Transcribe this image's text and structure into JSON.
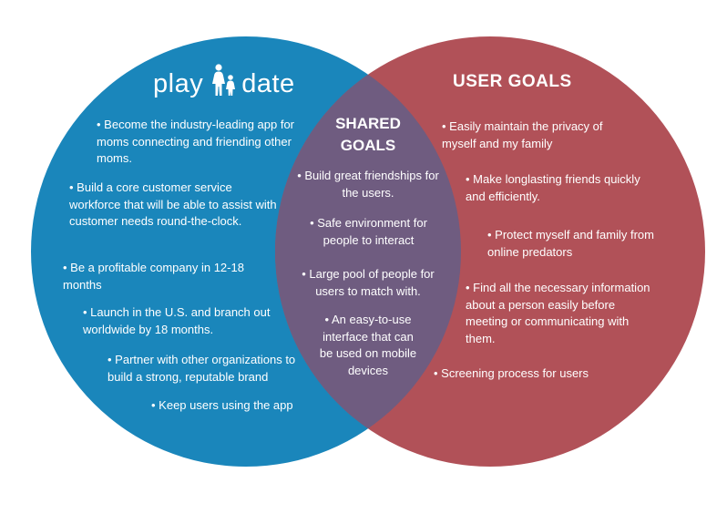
{
  "colors": {
    "left_circle": "#1a86bb",
    "right_circle": "#b15158",
    "overlap": "#6f5c80",
    "text": "#ffffff"
  },
  "left": {
    "logo_word_1": "play",
    "logo_icon": "mother-and-child-icon",
    "logo_word_2": "date",
    "items": [
      "• Become the industry-leading app for moms connecting and friending other moms.",
      "• Build a core customer service workforce that will be able to assist with customer needs round-the-clock.",
      "• Be a profitable company in 12-18 months",
      "• Launch in the U.S. and branch out worldwide by 18 months.",
      "• Partner with other organizations to build a strong, reputable brand",
      "• Keep users using the app"
    ]
  },
  "shared": {
    "title_line_1": "SHARED",
    "title_line_2": "GOALS",
    "items": [
      "• Build great friendships for the users.",
      "• Safe environment for people to interact",
      "• Large pool of people for users to match with.",
      "• An easy-to-use interface that can be used on mobile devices"
    ]
  },
  "right": {
    "title": "USER GOALS",
    "items": [
      "• Easily maintain the privacy of myself and my family",
      "• Make longlasting friends quickly and efficiently.",
      "• Protect myself and family from online predators",
      "• Find all the necessary information about a person easily before meeting or communicating with them.",
      "• Screening process for users"
    ]
  }
}
